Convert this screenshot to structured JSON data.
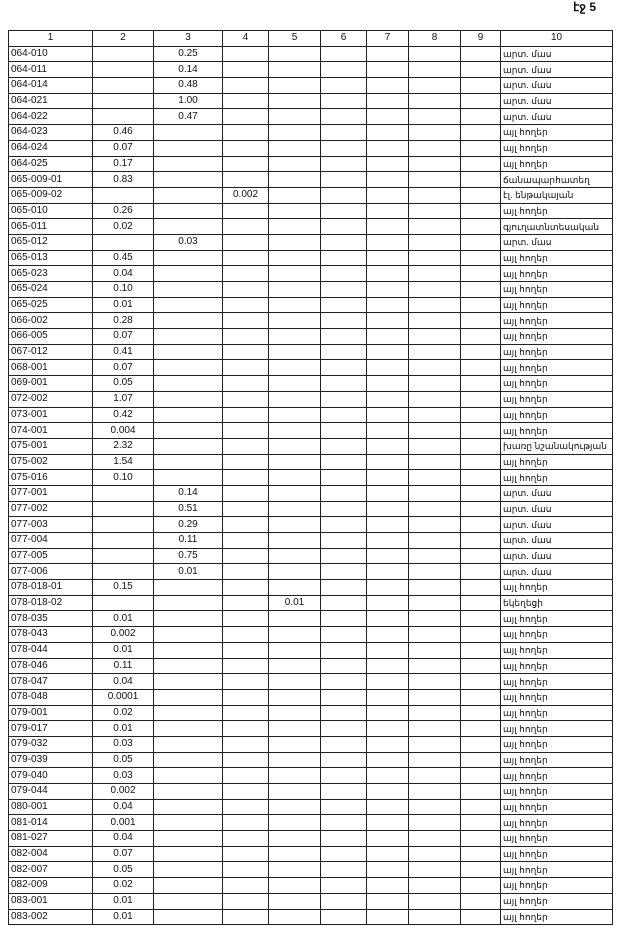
{
  "page_label": "էջ 5",
  "columns": [
    "1",
    "2",
    "3",
    "4",
    "5",
    "6",
    "7",
    "8",
    "9",
    "10"
  ],
  "rows": [
    [
      "064-010",
      "",
      "0.25",
      "",
      "",
      "",
      "",
      "",
      "",
      "արտ. մաս"
    ],
    [
      "064-011",
      "",
      "0.14",
      "",
      "",
      "",
      "",
      "",
      "",
      "արտ. մաս"
    ],
    [
      "064-014",
      "",
      "0.48",
      "",
      "",
      "",
      "",
      "",
      "",
      "արտ. մաս"
    ],
    [
      "064-021",
      "",
      "1.00",
      "",
      "",
      "",
      "",
      "",
      "",
      "արտ. մաս"
    ],
    [
      "064-022",
      "",
      "0.47",
      "",
      "",
      "",
      "",
      "",
      "",
      "արտ. մաս"
    ],
    [
      "064-023",
      "0.46",
      "",
      "",
      "",
      "",
      "",
      "",
      "",
      "այլ հողեր"
    ],
    [
      "064-024",
      "0.07",
      "",
      "",
      "",
      "",
      "",
      "",
      "",
      "այլ հողեր"
    ],
    [
      "064-025",
      "0.17",
      "",
      "",
      "",
      "",
      "",
      "",
      "",
      "այլ հողեր"
    ],
    [
      "065-009-01",
      "0.83",
      "",
      "",
      "",
      "",
      "",
      "",
      "",
      "ճանապարհատեղ"
    ],
    [
      "065-009-02",
      "",
      "",
      "0.002",
      "",
      "",
      "",
      "",
      "",
      "էլ. ենթակայան"
    ],
    [
      "065-010",
      "0.26",
      "",
      "",
      "",
      "",
      "",
      "",
      "",
      "այլ հողեր"
    ],
    [
      "065-011",
      "0.02",
      "",
      "",
      "",
      "",
      "",
      "",
      "",
      "գյուղատնտեսական"
    ],
    [
      "065-012",
      "",
      "0.03",
      "",
      "",
      "",
      "",
      "",
      "",
      "արտ. մաս"
    ],
    [
      "065-013",
      "0.45",
      "",
      "",
      "",
      "",
      "",
      "",
      "",
      "այլ հողեր"
    ],
    [
      "065-023",
      "0.04",
      "",
      "",
      "",
      "",
      "",
      "",
      "",
      "այլ հողեր"
    ],
    [
      "065-024",
      "0.10",
      "",
      "",
      "",
      "",
      "",
      "",
      "",
      "այլ հողեր"
    ],
    [
      "065-025",
      "0.01",
      "",
      "",
      "",
      "",
      "",
      "",
      "",
      "այլ հողեր"
    ],
    [
      "066-002",
      "0.28",
      "",
      "",
      "",
      "",
      "",
      "",
      "",
      "այլ հողեր"
    ],
    [
      "066-005",
      "0.07",
      "",
      "",
      "",
      "",
      "",
      "",
      "",
      "այլ հողեր"
    ],
    [
      "067-012",
      "0.41",
      "",
      "",
      "",
      "",
      "",
      "",
      "",
      "այլ հողեր"
    ],
    [
      "068-001",
      "0.07",
      "",
      "",
      "",
      "",
      "",
      "",
      "",
      "այլ հողեր"
    ],
    [
      "069-001",
      "0.05",
      "",
      "",
      "",
      "",
      "",
      "",
      "",
      "այլ հողեր"
    ],
    [
      "072-002",
      "1.07",
      "",
      "",
      "",
      "",
      "",
      "",
      "",
      "այլ հողեր"
    ],
    [
      "073-001",
      "0.42",
      "",
      "",
      "",
      "",
      "",
      "",
      "",
      "այլ հողեր"
    ],
    [
      "074-001",
      "0.004",
      "",
      "",
      "",
      "",
      "",
      "",
      "",
      "այլ հողեր"
    ],
    [
      "075-001",
      "2.32",
      "",
      "",
      "",
      "",
      "",
      "",
      "",
      "խառը նշանակության"
    ],
    [
      "075-002",
      "1.54",
      "",
      "",
      "",
      "",
      "",
      "",
      "",
      "այլ հողեր"
    ],
    [
      "075-016",
      "0.10",
      "",
      "",
      "",
      "",
      "",
      "",
      "",
      "այլ հողեր"
    ],
    [
      "077-001",
      "",
      "0.14",
      "",
      "",
      "",
      "",
      "",
      "",
      "արտ. մաս"
    ],
    [
      "077-002",
      "",
      "0.51",
      "",
      "",
      "",
      "",
      "",
      "",
      "արտ. մաս"
    ],
    [
      "077-003",
      "",
      "0.29",
      "",
      "",
      "",
      "",
      "",
      "",
      "արտ. մաս"
    ],
    [
      "077-004",
      "",
      "0.11",
      "",
      "",
      "",
      "",
      "",
      "",
      "արտ. մաս"
    ],
    [
      "077-005",
      "",
      "0.75",
      "",
      "",
      "",
      "",
      "",
      "",
      "արտ. մաս"
    ],
    [
      "077-006",
      "",
      "0.01",
      "",
      "",
      "",
      "",
      "",
      "",
      "արտ. մաս"
    ],
    [
      "078-018-01",
      "0.15",
      "",
      "",
      "",
      "",
      "",
      "",
      "",
      "այլ հողեր"
    ],
    [
      "078-018-02",
      "",
      "",
      "",
      "0.01",
      "",
      "",
      "",
      "",
      "եկեղեցի"
    ],
    [
      "078-035",
      "0.01",
      "",
      "",
      "",
      "",
      "",
      "",
      "",
      "այլ հողեր"
    ],
    [
      "078-043",
      "0.002",
      "",
      "",
      "",
      "",
      "",
      "",
      "",
      "այլ հողեր"
    ],
    [
      "078-044",
      "0.01",
      "",
      "",
      "",
      "",
      "",
      "",
      "",
      "այլ հողեր"
    ],
    [
      "078-046",
      "0.11",
      "",
      "",
      "",
      "",
      "",
      "",
      "",
      "այլ հողեր"
    ],
    [
      "078-047",
      "0.04",
      "",
      "",
      "",
      "",
      "",
      "",
      "",
      "այլ հողեր"
    ],
    [
      "078-048",
      "0.0001",
      "",
      "",
      "",
      "",
      "",
      "",
      "",
      "այլ հողեր"
    ],
    [
      "079-001",
      "0.02",
      "",
      "",
      "",
      "",
      "",
      "",
      "",
      "այլ հողեր"
    ],
    [
      "079-017",
      "0.01",
      "",
      "",
      "",
      "",
      "",
      "",
      "",
      "այլ հողեր"
    ],
    [
      "079-032",
      "0.03",
      "",
      "",
      "",
      "",
      "",
      "",
      "",
      "այլ հողեր"
    ],
    [
      "079-039",
      "0.05",
      "",
      "",
      "",
      "",
      "",
      "",
      "",
      "այլ հողեր"
    ],
    [
      "079-040",
      "0.03",
      "",
      "",
      "",
      "",
      "",
      "",
      "",
      "այլ հողեր"
    ],
    [
      "079-044",
      "0.002",
      "",
      "",
      "",
      "",
      "",
      "",
      "",
      "այլ հողեր"
    ],
    [
      "080-001",
      "0.04",
      "",
      "",
      "",
      "",
      "",
      "",
      "",
      "այլ հողեր"
    ],
    [
      "081-014",
      "0.001",
      "",
      "",
      "",
      "",
      "",
      "",
      "",
      "այլ հողեր"
    ],
    [
      "081-027",
      "0.04",
      "",
      "",
      "",
      "",
      "",
      "",
      "",
      "այլ հողեր"
    ],
    [
      "082-004",
      "0.07",
      "",
      "",
      "",
      "",
      "",
      "",
      "",
      "այլ հողեր"
    ],
    [
      "082-007",
      "0.05",
      "",
      "",
      "",
      "",
      "",
      "",
      "",
      "այլ հողեր"
    ],
    [
      "082-009",
      "0.02",
      "",
      "",
      "",
      "",
      "",
      "",
      "",
      "այլ հողեր"
    ],
    [
      "083-001",
      "0.01",
      "",
      "",
      "",
      "",
      "",
      "",
      "",
      "այլ հողեր"
    ],
    [
      "083-002",
      "0.01",
      "",
      "",
      "",
      "",
      "",
      "",
      "",
      "այլ հողեր"
    ]
  ]
}
